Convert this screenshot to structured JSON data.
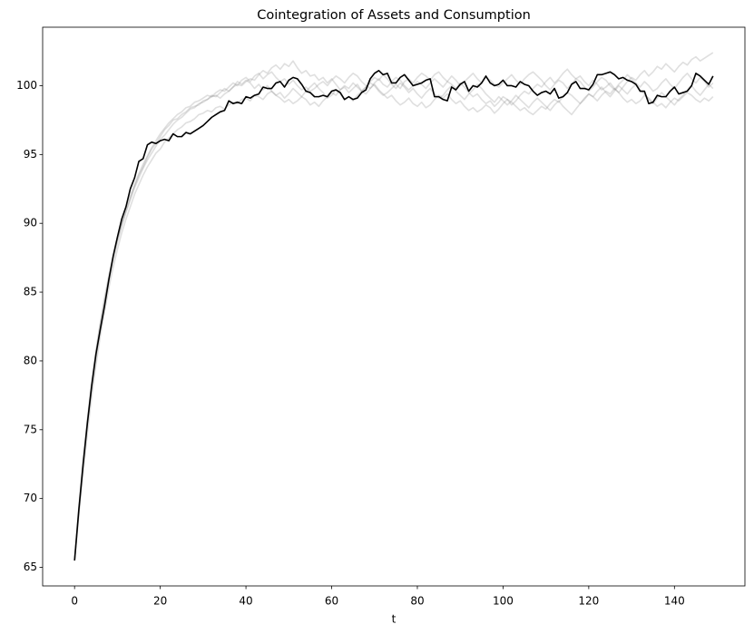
{
  "chart_data": {
    "type": "line",
    "title": "Cointegration of Assets and Consumption",
    "xlabel": "t",
    "x": [
      0,
      1,
      2,
      3,
      4,
      5,
      6,
      7,
      8,
      9,
      10,
      11,
      12,
      13,
      14,
      15,
      16,
      17,
      18,
      19,
      20,
      21,
      22,
      23,
      24,
      25,
      26,
      27,
      28,
      29,
      30,
      31,
      32,
      33,
      34,
      35,
      36,
      37,
      38,
      39,
      40,
      41,
      42,
      43,
      44,
      45,
      46,
      47,
      48,
      49,
      50,
      51,
      52,
      53,
      54,
      55,
      56,
      57,
      58,
      59,
      60,
      61,
      62,
      63,
      64,
      65,
      66,
      67,
      68,
      69,
      70,
      71,
      72,
      73,
      74,
      75,
      76,
      77,
      78,
      79,
      80,
      81,
      82,
      83,
      84,
      85,
      86,
      87,
      88,
      89,
      90,
      91,
      92,
      93,
      94,
      95,
      96,
      97,
      98,
      99,
      100,
      101,
      102,
      103,
      104,
      105,
      106,
      107,
      108,
      109,
      110,
      111,
      112,
      113,
      114,
      115,
      116,
      117,
      118,
      119,
      120,
      121,
      122,
      123,
      124,
      125,
      126,
      127,
      128,
      129,
      130,
      131,
      132,
      133,
      134,
      135,
      136,
      137,
      138,
      139,
      140,
      141,
      142,
      143,
      144,
      145,
      146,
      147,
      148,
      149
    ],
    "xlim": [
      -7.45,
      156.45
    ],
    "xticks": [
      0,
      20,
      40,
      60,
      80,
      100,
      120,
      140
    ],
    "ylim": [
      63.65,
      104.25
    ],
    "yticks": [
      65,
      70,
      75,
      80,
      85,
      90,
      95,
      100
    ],
    "series": [
      {
        "color": "#808080",
        "alpha": 0.25,
        "values": [
          65.5,
          69.0,
          72.3,
          75.4,
          78.0,
          80.3,
          82.2,
          84.1,
          85.8,
          87.3,
          88.6,
          89.8,
          90.9,
          91.8,
          92.7,
          93.5,
          94.1,
          94.8,
          95.4,
          95.8,
          96.3,
          96.8,
          97.1,
          97.5,
          97.6,
          97.9,
          98.1,
          98.4,
          98.5,
          98.6,
          98.9,
          99.0,
          99.2,
          99.3,
          99.1,
          99.4,
          99.6,
          99.9,
          100.1,
          100.0,
          100.3,
          100.5,
          100.4,
          100.8,
          101.1,
          100.9,
          101.3,
          101.5,
          101.2,
          101.6,
          101.4,
          101.8,
          101.3,
          100.9,
          101.1,
          100.7,
          100.8,
          100.4,
          100.6,
          100.2,
          100.5,
          100.1,
          99.7,
          99.9,
          99.5,
          99.8,
          100.1,
          99.6,
          99.9,
          100.2,
          100.0,
          99.6,
          99.3,
          99.5,
          99.8,
          100.1,
          99.8,
          100.3,
          100.5,
          100.2,
          100.6,
          100.9,
          100.7,
          100.4,
          100.8,
          101.0,
          100.6,
          100.3,
          100.1,
          99.8,
          100.2,
          99.9,
          99.5,
          99.2,
          99.4,
          99.0,
          98.7,
          98.9,
          98.5,
          98.8,
          99.2,
          99.0,
          98.6,
          98.9,
          99.3,
          99.6,
          99.4,
          99.8,
          100.1,
          99.9,
          100.3,
          100.6,
          100.2,
          100.5,
          100.9,
          101.2,
          100.8,
          100.5,
          100.7,
          100.3,
          100.0,
          100.4,
          100.1,
          99.7,
          99.9,
          100.2,
          99.8,
          99.5,
          99.9,
          100.3,
          100.6,
          100.4,
          100.8,
          101.1,
          100.7,
          101.0,
          101.4,
          101.2,
          101.6,
          101.3,
          101.0,
          101.4,
          101.7,
          101.5,
          101.9,
          102.1,
          101.8,
          102.0,
          102.2,
          102.4
        ]
      },
      {
        "color": "#808080",
        "alpha": 0.25,
        "values": [
          65.5,
          68.8,
          71.9,
          74.8,
          77.4,
          79.7,
          81.8,
          83.6,
          85.3,
          86.8,
          88.1,
          89.3,
          90.3,
          91.2,
          92.1,
          92.8,
          93.5,
          94.1,
          94.6,
          95.1,
          95.4,
          95.9,
          96.2,
          96.5,
          96.8,
          97.0,
          97.3,
          97.4,
          97.6,
          97.9,
          98.0,
          98.2,
          98.1,
          98.4,
          98.5,
          98.3,
          98.6,
          98.8,
          98.7,
          99.0,
          99.1,
          98.9,
          99.3,
          99.2,
          99.0,
          99.4,
          99.6,
          99.3,
          99.1,
          98.8,
          99.0,
          98.7,
          98.9,
          99.2,
          99.0,
          98.6,
          98.8,
          98.5,
          98.9,
          99.2,
          99.5,
          99.3,
          99.7,
          100.0,
          99.8,
          100.2,
          99.9,
          99.6,
          99.4,
          99.8,
          100.1,
          99.7,
          99.4,
          99.1,
          99.3,
          98.9,
          98.6,
          98.8,
          99.1,
          98.7,
          98.5,
          98.8,
          98.4,
          98.6,
          99.0,
          99.3,
          99.1,
          99.4,
          99.0,
          98.7,
          98.9,
          98.5,
          98.2,
          98.4,
          98.1,
          98.3,
          98.6,
          98.4,
          98.0,
          98.3,
          98.7,
          99.0,
          98.8,
          98.5,
          98.2,
          98.4,
          98.1,
          97.9,
          98.2,
          98.5,
          98.3,
          98.7,
          99.0,
          98.8,
          99.2,
          99.5,
          99.3,
          99.0,
          98.7,
          99.1,
          99.4,
          99.2,
          98.9,
          99.3,
          99.6,
          99.4,
          99.8,
          99.5,
          99.1,
          98.8,
          99.0,
          98.7,
          98.9,
          99.3,
          99.1,
          98.8,
          98.5,
          98.7,
          98.4,
          98.8,
          99.1,
          98.9,
          99.2,
          99.5,
          99.3,
          99.0,
          98.8,
          99.1,
          98.9,
          99.2
        ]
      },
      {
        "color": "#808080",
        "alpha": 0.25,
        "values": [
          65.5,
          69.4,
          72.8,
          75.8,
          78.5,
          80.8,
          82.8,
          84.6,
          86.2,
          87.6,
          88.9,
          90.0,
          91.1,
          92.0,
          92.8,
          93.6,
          94.3,
          94.9,
          95.5,
          96.0,
          96.5,
          96.9,
          97.3,
          97.6,
          97.9,
          98.1,
          98.4,
          98.5,
          98.8,
          98.9,
          99.1,
          99.3,
          99.2,
          99.5,
          99.7,
          99.6,
          99.9,
          100.2,
          100.0,
          100.4,
          100.6,
          100.3,
          100.7,
          100.9,
          100.5,
          100.8,
          101.0,
          100.6,
          100.3,
          100.5,
          100.1,
          100.4,
          100.0,
          99.7,
          99.9,
          99.6,
          99.8,
          100.1,
          100.3,
          100.0,
          100.4,
          100.7,
          100.5,
          100.2,
          100.6,
          100.9,
          100.7,
          100.3,
          100.0,
          99.8,
          100.2,
          100.5,
          100.1,
          99.9,
          100.3,
          100.6,
          100.4,
          100.0,
          99.7,
          100.0,
          100.3,
          100.1,
          99.8,
          100.2,
          100.5,
          100.2,
          99.9,
          100.3,
          100.7,
          100.4,
          100.0,
          100.3,
          100.6,
          100.9,
          100.5,
          100.2,
          100.6,
          100.4,
          100.1,
          99.9,
          100.2,
          100.5,
          100.8,
          100.4,
          100.1,
          100.5,
          100.8,
          101.0,
          100.7,
          100.4,
          100.0,
          99.7,
          100.1,
          100.4,
          100.2,
          99.8,
          100.1,
          100.5,
          100.3,
          99.9,
          99.6,
          99.9,
          100.3,
          100.6,
          100.4,
          100.0,
          99.7,
          100.1,
          100.4,
          100.8,
          100.5,
          100.2,
          99.9,
          100.3,
          100.0,
          99.6,
          99.8,
          100.2,
          100.5,
          100.1,
          99.8,
          100.2,
          100.6,
          100.9,
          100.5,
          100.2,
          100.6,
          100.3,
          99.9,
          100.2
        ]
      },
      {
        "color": "#808080",
        "alpha": 0.25,
        "values": [
          65.5,
          69.1,
          72.6,
          75.6,
          78.3,
          80.6,
          82.6,
          84.4,
          86.0,
          87.5,
          88.8,
          89.9,
          90.8,
          91.7,
          92.6,
          93.3,
          94.0,
          94.6,
          95.1,
          95.6,
          96.1,
          96.4,
          96.8,
          97.2,
          97.5,
          97.7,
          98.0,
          98.3,
          98.4,
          98.7,
          98.8,
          99.0,
          99.3,
          99.2,
          99.5,
          99.8,
          99.6,
          99.9,
          100.3,
          100.1,
          100.4,
          100.2,
          99.8,
          100.1,
          99.7,
          100.0,
          99.6,
          99.3,
          99.5,
          99.1,
          99.4,
          99.8,
          99.5,
          99.2,
          99.6,
          99.9,
          100.2,
          99.8,
          99.5,
          99.1,
          99.3,
          99.7,
          99.4,
          99.0,
          99.2,
          98.9,
          99.3,
          99.6,
          99.9,
          100.3,
          100.6,
          100.4,
          100.8,
          100.5,
          100.1,
          99.8,
          100.2,
          99.9,
          99.5,
          99.8,
          99.4,
          99.1,
          99.5,
          99.8,
          99.4,
          99.1,
          99.3,
          99.7,
          100.0,
          99.6,
          99.3,
          99.0,
          99.4,
          99.7,
          100.1,
          99.8,
          99.4,
          99.1,
          98.8,
          99.2,
          98.9,
          98.6,
          98.9,
          99.3,
          99.0,
          98.7,
          98.4,
          98.8,
          99.1,
          98.8,
          98.5,
          98.2,
          98.6,
          98.9,
          98.5,
          98.2,
          97.9,
          98.3,
          98.7,
          99.0,
          99.4,
          99.2,
          99.6,
          99.9,
          99.5,
          99.2,
          99.6,
          100.0,
          99.7,
          99.4,
          99.8,
          100.1,
          99.7,
          99.4,
          99.0,
          98.7,
          99.1,
          99.5,
          99.2,
          98.9,
          98.6,
          99.0,
          99.3,
          99.7,
          100.0,
          99.6,
          99.3,
          99.7,
          100.1,
          99.8
        ]
      },
      {
        "color": "#000000",
        "alpha": 1,
        "values": [
          65.5,
          69.2,
          72.5,
          75.5,
          78.2,
          80.5,
          82.3,
          84.0,
          85.9,
          87.6,
          89.0,
          90.3,
          91.2,
          92.5,
          93.3,
          94.5,
          94.7,
          95.7,
          95.9,
          95.8,
          96.0,
          96.1,
          96.0,
          96.5,
          96.3,
          96.3,
          96.6,
          96.5,
          96.7,
          96.9,
          97.1,
          97.4,
          97.7,
          97.9,
          98.1,
          98.2,
          98.9,
          98.7,
          98.8,
          98.7,
          99.2,
          99.1,
          99.3,
          99.4,
          99.9,
          99.8,
          99.8,
          100.2,
          100.3,
          99.9,
          100.4,
          100.6,
          100.5,
          100.1,
          99.6,
          99.5,
          99.2,
          99.2,
          99.3,
          99.2,
          99.6,
          99.7,
          99.5,
          99.0,
          99.2,
          99.0,
          99.1,
          99.5,
          99.7,
          100.5,
          100.9,
          101.1,
          100.8,
          100.9,
          100.2,
          100.2,
          100.6,
          100.8,
          100.4,
          100.0,
          100.1,
          100.2,
          100.4,
          100.5,
          99.2,
          99.2,
          99.0,
          98.9,
          99.9,
          99.7,
          100.1,
          100.3,
          99.6,
          100.0,
          99.9,
          100.2,
          100.7,
          100.2,
          100.0,
          100.1,
          100.4,
          100.0,
          100.0,
          99.9,
          100.3,
          100.1,
          100.0,
          99.6,
          99.3,
          99.5,
          99.6,
          99.4,
          99.8,
          99.1,
          99.2,
          99.5,
          100.1,
          100.3,
          99.8,
          99.8,
          99.7,
          100.1,
          100.8,
          100.8,
          100.9,
          101.0,
          100.8,
          100.5,
          100.6,
          100.4,
          100.3,
          100.1,
          99.6,
          99.6,
          98.7,
          98.8,
          99.3,
          99.2,
          99.2,
          99.6,
          99.9,
          99.4,
          99.5,
          99.6,
          100.0,
          100.9,
          100.7,
          100.4,
          100.1,
          100.7
        ]
      }
    ]
  }
}
